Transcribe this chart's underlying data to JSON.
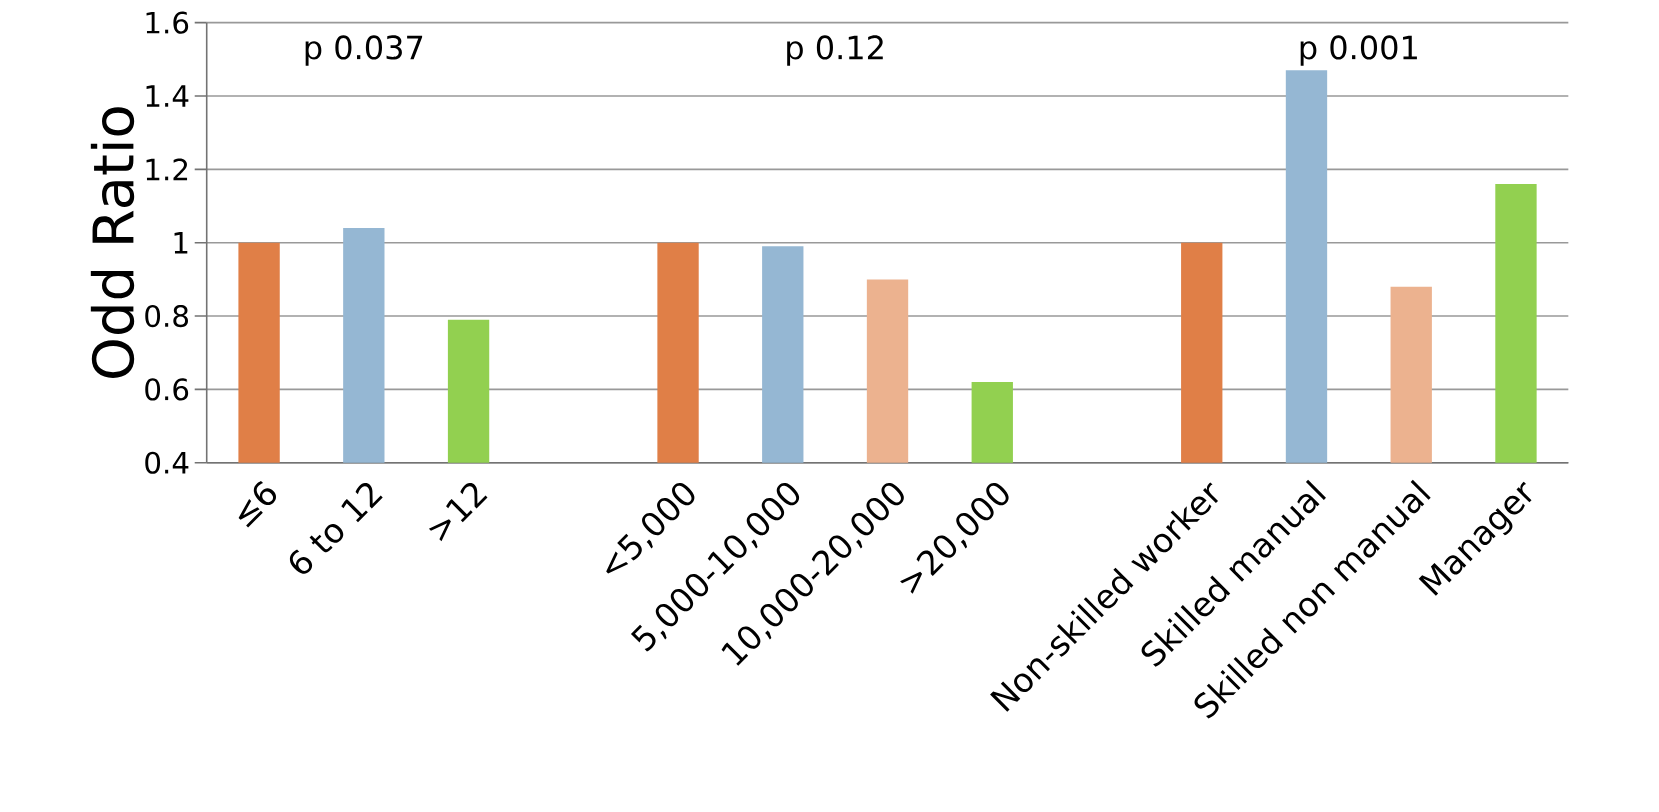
{
  "chart_data": {
    "type": "bar",
    "ylabel": "Odd Ratio",
    "categories": [
      "≤6",
      "6 to 12",
      ">12",
      null,
      "<5,000",
      "5,000-10,000",
      "10,000-20,000",
      ">20,000",
      null,
      "Non-skilled worker",
      "Skilled manual",
      "Skilled non manual",
      "Manager"
    ],
    "values": [
      1.0,
      1.04,
      0.79,
      null,
      1.0,
      0.99,
      0.9,
      0.62,
      null,
      1.0,
      1.47,
      0.88,
      1.16
    ],
    "colors": [
      "#e07f47",
      "#95b7d3",
      "#92d050",
      null,
      "#e07f47",
      "#95b7d3",
      "#ecb28f",
      "#92d050",
      null,
      "#e07f47",
      "#95b7d3",
      "#ecb28f",
      "#92d050"
    ],
    "ylim": [
      0.4,
      1.6
    ],
    "yticks": [
      0.4,
      0.6,
      0.8,
      1,
      1.2,
      1.4,
      1.6
    ],
    "grid": "y",
    "annotations": [
      "p 0.037",
      "p 0.12",
      "p 0.001"
    ]
  }
}
